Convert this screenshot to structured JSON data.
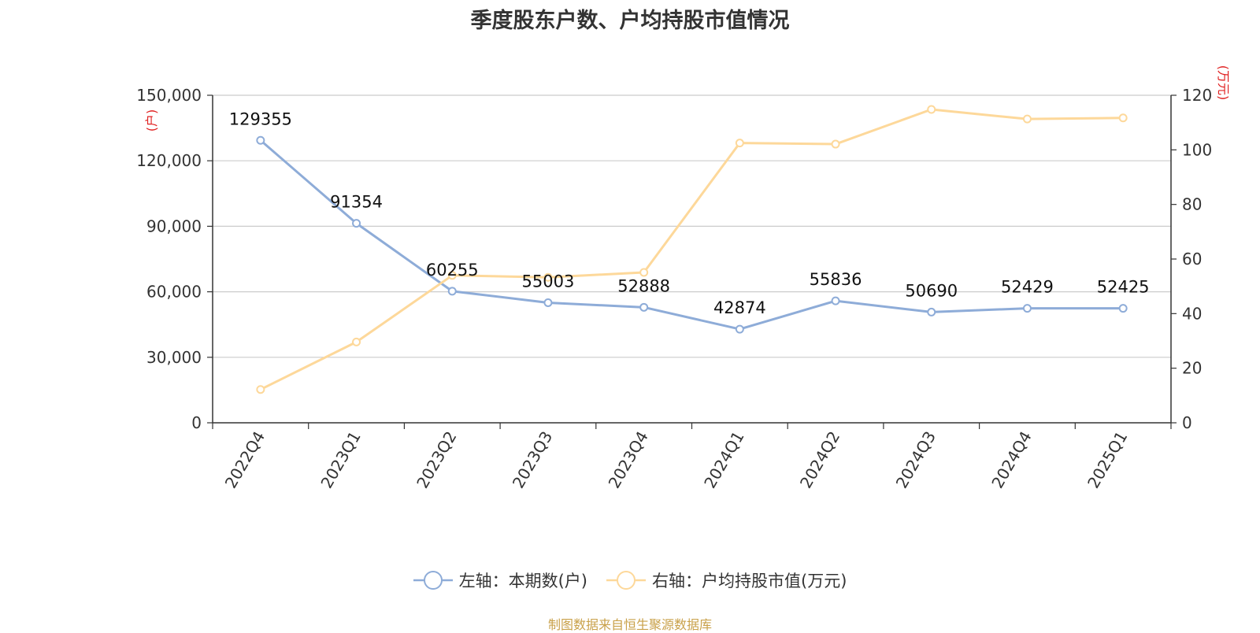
{
  "title": "季度股东户数、户均持股市值情况",
  "source": "制图数据来自恒生聚源数据库",
  "chart_data": {
    "type": "line",
    "categories": [
      "2022Q4",
      "2023Q1",
      "2023Q2",
      "2023Q3",
      "2023Q4",
      "2024Q1",
      "2024Q2",
      "2024Q3",
      "2024Q4",
      "2025Q1"
    ],
    "left_axis": {
      "unit_label": "(户)",
      "ylim": [
        0,
        150000
      ],
      "ticks": [
        "0",
        "30,000",
        "60,000",
        "90,000",
        "120,000",
        "150,000"
      ]
    },
    "right_axis": {
      "unit_label": "(万元)",
      "ylim": [
        0,
        120
      ],
      "ticks": [
        "0",
        "20",
        "40",
        "60",
        "80",
        "100",
        "120"
      ]
    },
    "series": [
      {
        "name": "左轴：本期数(户)",
        "axis": "left",
        "color": "#8eacd8",
        "values": [
          129355,
          91354,
          60255,
          55003,
          52888,
          42874,
          55836,
          50690,
          52429,
          52425
        ],
        "labels": [
          "129355",
          "91354",
          "60255",
          "55003",
          "52888",
          "42874",
          "55836",
          "50690",
          "52429",
          "52425"
        ]
      },
      {
        "name": "右轴：户均持股市值(万元)",
        "axis": "right",
        "color": "#fdd89a",
        "values": [
          12.2,
          29.6,
          54.0,
          53.3,
          55.1,
          102.5,
          102.1,
          114.8,
          111.3,
          111.7
        ]
      }
    ],
    "grid": true,
    "legend_position": "bottom-center"
  }
}
